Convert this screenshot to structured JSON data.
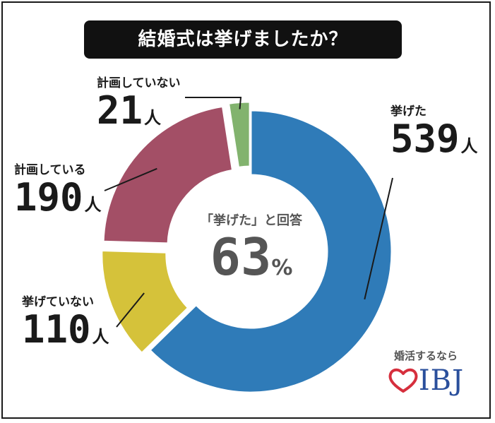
{
  "title": "結婚式は挙げましたか？",
  "chart_data": {
    "type": "donut",
    "unit": "人",
    "categories": [
      "挙げた",
      "挙げていない",
      "計画している",
      "計画していない"
    ],
    "values": [
      539,
      110,
      190,
      21
    ],
    "colors": [
      "#2f7bb8",
      "#d5c23a",
      "#a34f66",
      "#82b36e"
    ],
    "center": {
      "caption": "「挙げた」と回答",
      "value": "63",
      "unit": "%"
    }
  },
  "brand": {
    "tagline": "婚活するなら",
    "logo": "IBJ"
  }
}
